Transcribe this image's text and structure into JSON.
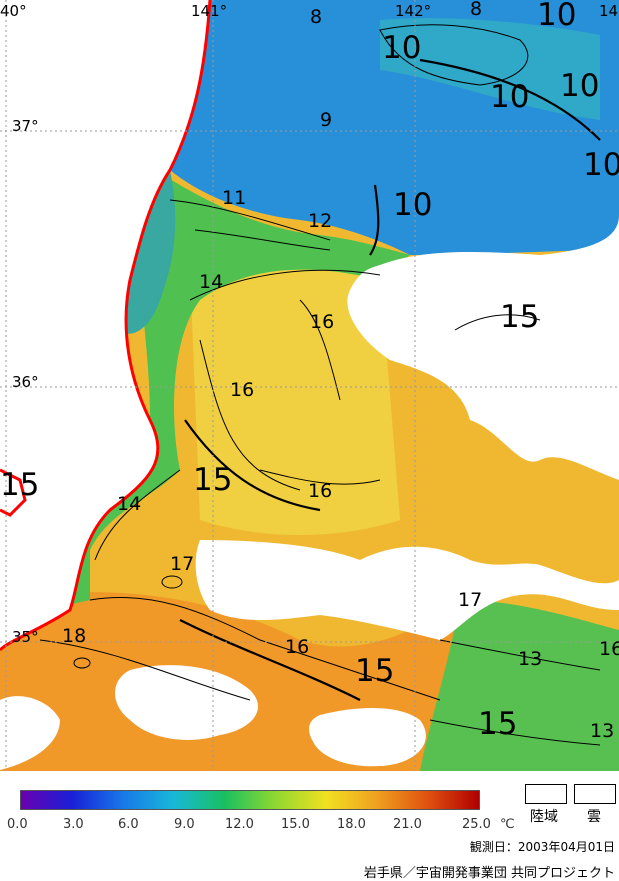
{
  "coordinates": {
    "lon_labels": [
      "40°",
      "141°",
      "142°",
      "14"
    ],
    "lat_labels": [
      "37°",
      "36°",
      "35°"
    ]
  },
  "isotherm_labels": {
    "small": [
      "8",
      "8",
      "9",
      "11",
      "12",
      "14",
      "16",
      "16",
      "16",
      "14",
      "17",
      "18",
      "16",
      "17",
      "13",
      "16",
      "13"
    ],
    "large": [
      "10",
      "10",
      "10",
      "10",
      "10",
      "10",
      "15",
      "15",
      "15",
      "15",
      "15"
    ]
  },
  "colors": {
    "land": "#ffffff",
    "coastline": "#ff0000",
    "grid": "#9a9a9a",
    "scale": [
      "#6a00b0",
      "#1820d8",
      "#1878e8",
      "#18b8d8",
      "#18c060",
      "#90d830",
      "#f0e020",
      "#f0a020",
      "#e05010",
      "#b00000"
    ]
  },
  "legend": {
    "ticks": [
      "0.0",
      "3.0",
      "6.0",
      "9.0",
      "12.0",
      "15.0",
      "18.0",
      "21.0",
      "25.0"
    ],
    "unit": "℃",
    "land_label": "陸域",
    "cloud_label": "雲"
  },
  "observation_date": "観測日：2003年04月01日",
  "credit": "岩手県／宇宙開発事業団 共同プロジェクト"
}
